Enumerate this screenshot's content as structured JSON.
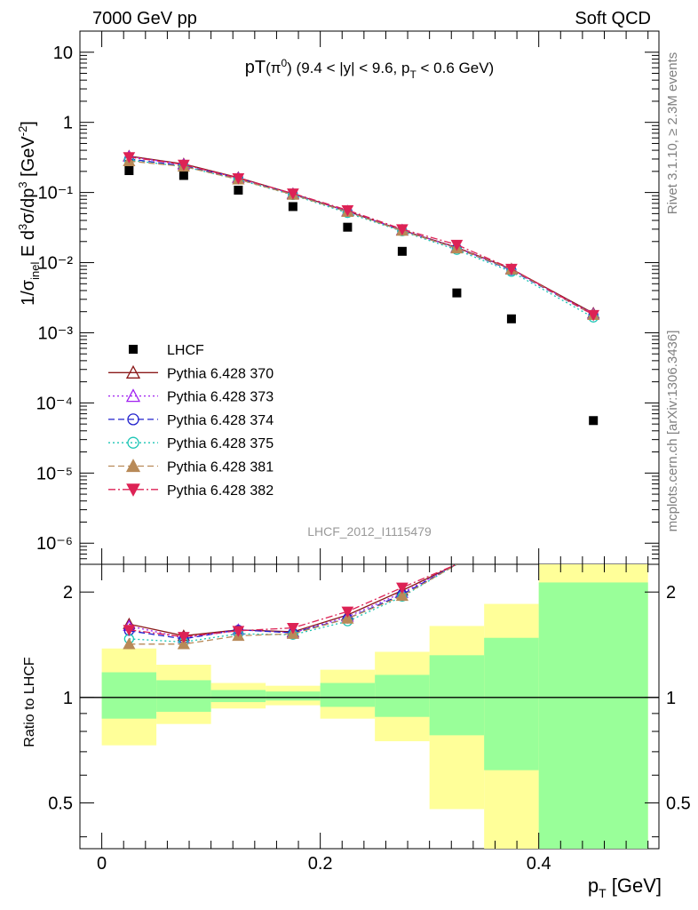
{
  "header": {
    "left": "7000 GeV pp",
    "right": "Soft QCD"
  },
  "side": {
    "top": "Rivet 3.1.10, ≥ 2.3M events",
    "bottom": "mcplots.cern.ch [arXiv:1306.3436]"
  },
  "watermark": "LHCF_2012_I1115479",
  "chart_data": [
    {
      "type": "scatter",
      "title": "pT(π⁰) (9.4 < |y| < 9.6, pT < 0.6 GeV)",
      "ylabel": "1/σinel E d³σ/dp³ [GeV⁻²]",
      "xlabel": "pT [GeV]",
      "yscale": "log",
      "xlim": [
        -0.02,
        0.51
      ],
      "ylim": [
        5e-07,
        20
      ],
      "x": [
        0.025,
        0.075,
        0.125,
        0.175,
        0.225,
        0.275,
        0.325,
        0.375,
        0.45
      ],
      "legend_position": "bottom-left",
      "series": [
        {
          "name": "LHCF",
          "color": "#000000",
          "marker": "square",
          "values": [
            0.205,
            0.175,
            0.108,
            0.063,
            0.032,
            0.0145,
            0.0037,
            0.00158,
            5.6e-05
          ]
        },
        {
          "name": "Pythia 6.428 370",
          "color": "#8b1a1a",
          "marker": "triangle-open",
          "line": "solid",
          "values": [
            0.33,
            0.255,
            0.163,
            0.096,
            0.054,
            0.029,
            0.0165,
            0.0081,
            0.0019
          ]
        },
        {
          "name": "Pythia 6.428 373",
          "color": "#a020f0",
          "marker": "triangle-open",
          "line": "dotted",
          "values": [
            0.325,
            0.25,
            0.16,
            0.095,
            0.054,
            0.029,
            0.0163,
            0.008,
            0.00185
          ]
        },
        {
          "name": "Pythia 6.428 374",
          "color": "#2020cc",
          "marker": "circle-open",
          "line": "dashed",
          "values": [
            0.3,
            0.24,
            0.16,
            0.094,
            0.053,
            0.0285,
            0.016,
            0.0078,
            0.0018
          ]
        },
        {
          "name": "Pythia 6.428 375",
          "color": "#1ac4b4",
          "marker": "circle-open",
          "line": "dotted",
          "values": [
            0.29,
            0.235,
            0.153,
            0.092,
            0.051,
            0.028,
            0.0152,
            0.0074,
            0.00165
          ]
        },
        {
          "name": "Pythia 6.428 381",
          "color": "#b88a58",
          "marker": "triangle-filled",
          "line": "dashed",
          "values": [
            0.28,
            0.235,
            0.154,
            0.093,
            0.053,
            0.0285,
            0.016,
            0.008,
            0.0018
          ]
        },
        {
          "name": "Pythia 6.428 382",
          "color": "#dd2255",
          "marker": "triangle-down-filled",
          "line": "dashdot",
          "values": [
            0.32,
            0.25,
            0.16,
            0.097,
            0.056,
            0.03,
            0.018,
            0.0082,
            0.0018
          ]
        }
      ]
    },
    {
      "type": "line",
      "ylabel": "Ratio to LHCF",
      "xlabel": "pT [GeV]",
      "yscale": "log",
      "ylim": [
        0.37,
        2.4
      ],
      "xlim": [
        -0.02,
        0.51
      ],
      "bins": [
        [
          0.0,
          0.05
        ],
        [
          0.05,
          0.1
        ],
        [
          0.1,
          0.15
        ],
        [
          0.15,
          0.2
        ],
        [
          0.2,
          0.25
        ],
        [
          0.25,
          0.3
        ],
        [
          0.3,
          0.35
        ],
        [
          0.35,
          0.4
        ],
        [
          0.4,
          0.5
        ]
      ],
      "band_green": [
        [
          0.87,
          1.18
        ],
        [
          0.91,
          1.12
        ],
        [
          0.97,
          1.05
        ],
        [
          0.98,
          1.04
        ],
        [
          0.94,
          1.1
        ],
        [
          0.88,
          1.16
        ],
        [
          0.78,
          1.32
        ],
        [
          0.62,
          1.48
        ],
        [
          0.3,
          2.13
        ]
      ],
      "band_yellow": [
        [
          0.73,
          1.38
        ],
        [
          0.84,
          1.24
        ],
        [
          0.93,
          1.1
        ],
        [
          0.95,
          1.08
        ],
        [
          0.87,
          1.2
        ],
        [
          0.75,
          1.35
        ],
        [
          0.48,
          1.6
        ],
        [
          0.3,
          1.85
        ],
        [
          0.3,
          2.6
        ]
      ],
      "reference": 1,
      "x": [
        0.025,
        0.075,
        0.125,
        0.175,
        0.225,
        0.275,
        0.325
      ],
      "series": [
        {
          "name": "Pythia 6.428 370",
          "color": "#8b1a1a",
          "values": [
            1.62,
            1.5,
            1.56,
            1.54,
            1.72,
            2.02,
            3.0
          ]
        },
        {
          "name": "Pythia 6.428 373",
          "color": "#a020f0",
          "values": [
            1.6,
            1.48,
            1.56,
            1.53,
            1.7,
            1.99,
            3.0
          ]
        },
        {
          "name": "Pythia 6.428 374",
          "color": "#2020cc",
          "values": [
            1.55,
            1.47,
            1.56,
            1.53,
            1.68,
            1.97,
            3.0
          ]
        },
        {
          "name": "Pythia 6.428 375",
          "color": "#1ac4b4",
          "values": [
            1.47,
            1.44,
            1.52,
            1.51,
            1.65,
            1.94,
            3.0
          ]
        },
        {
          "name": "Pythia 6.428 381",
          "color": "#b88a58",
          "values": [
            1.42,
            1.42,
            1.5,
            1.52,
            1.68,
            1.95,
            3.0
          ]
        },
        {
          "name": "Pythia 6.428 382",
          "color": "#dd2255",
          "values": [
            1.56,
            1.49,
            1.55,
            1.58,
            1.76,
            2.06,
            3.0
          ]
        }
      ]
    }
  ]
}
